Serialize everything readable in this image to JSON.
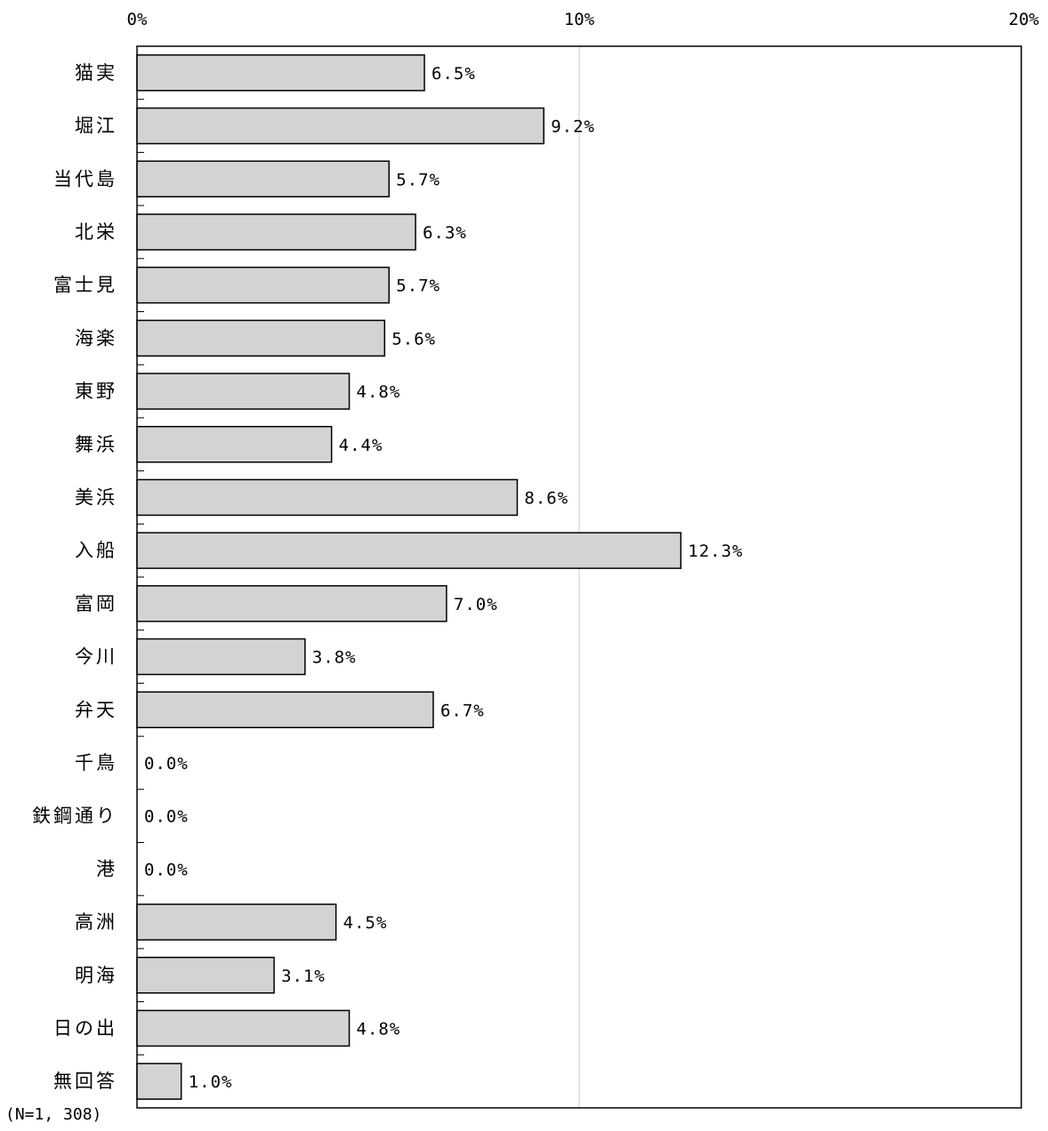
{
  "chart_data": {
    "type": "bar",
    "orientation": "horizontal",
    "categories": [
      "猫実",
      "堀江",
      "当代島",
      "北栄",
      "富士見",
      "海楽",
      "東野",
      "舞浜",
      "美浜",
      "入船",
      "富岡",
      "今川",
      "弁天",
      "千鳥",
      "鉄鋼通り",
      "港",
      "高洲",
      "明海",
      "日の出",
      "無回答"
    ],
    "values": [
      6.5,
      9.2,
      5.7,
      6.3,
      5.7,
      5.6,
      4.8,
      4.4,
      8.6,
      12.3,
      7.0,
      3.8,
      6.7,
      0.0,
      0.0,
      0.0,
      4.5,
      3.1,
      4.8,
      1.0
    ],
    "value_labels": [
      "6.5%",
      "9.2%",
      "5.7%",
      "6.3%",
      "5.7%",
      "5.6%",
      "4.8%",
      "4.4%",
      "8.6%",
      "12.3%",
      "7.0%",
      "3.8%",
      "6.7%",
      "0.0%",
      "0.0%",
      "0.0%",
      "4.5%",
      "3.1%",
      "4.8%",
      "1.0%"
    ],
    "xlim": [
      0,
      20
    ],
    "xticks": [
      0,
      10,
      20
    ],
    "xtick_labels": [
      "0%",
      "10%",
      "20%"
    ],
    "bar_color": "#d3d3d3",
    "bar_edge_color": "#000000",
    "grid": true,
    "legend": "none",
    "title": "",
    "xlabel": "",
    "ylabel": ""
  },
  "note": "(N=1, 308)"
}
